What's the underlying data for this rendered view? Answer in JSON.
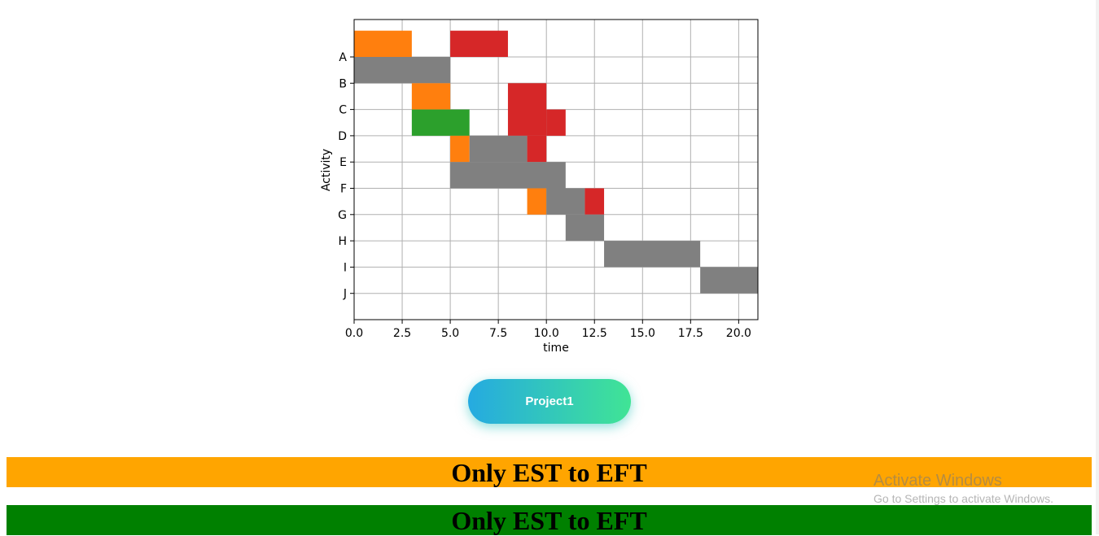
{
  "chart_data": {
    "type": "gantt",
    "xlabel": "time",
    "ylabel": "Activity",
    "xlim": [
      0,
      21
    ],
    "xticks": [
      "0.0",
      "2.5",
      "5.0",
      "7.5",
      "10.0",
      "12.5",
      "15.0",
      "17.5",
      "20.0"
    ],
    "xtick_values": [
      0,
      2.5,
      5,
      7.5,
      10,
      12.5,
      15,
      17.5,
      20
    ],
    "categories": [
      "A",
      "B",
      "C",
      "D",
      "E",
      "F",
      "G",
      "H",
      "I",
      "J"
    ],
    "grid": true,
    "colors": {
      "orange": "#ff7f0e",
      "grey": "#808080",
      "red": "#d62728",
      "green": "#2ca02c"
    },
    "bars": [
      {
        "row_from": "A",
        "row_to": "A",
        "top_half": true,
        "start": 0,
        "end": 3,
        "color": "orange"
      },
      {
        "row_from": "A",
        "row_to": "A",
        "top_half": true,
        "start": 5,
        "end": 8,
        "color": "red"
      },
      {
        "row_from": "A",
        "row_to": "B",
        "start": 0,
        "end": 5,
        "color": "grey"
      },
      {
        "row_from": "B",
        "row_to": "C",
        "start": 3,
        "end": 5,
        "color": "orange"
      },
      {
        "row_from": "B",
        "row_to": "D",
        "start": 8,
        "end": 10,
        "color": "red"
      },
      {
        "row_from": "C",
        "row_to": "D",
        "start": 3,
        "end": 6,
        "color": "green"
      },
      {
        "row_from": "C",
        "row_to": "D",
        "start": 10,
        "end": 11,
        "color": "red"
      },
      {
        "row_from": "D",
        "row_to": "E",
        "start": 5,
        "end": 6,
        "color": "orange"
      },
      {
        "row_from": "D",
        "row_to": "E",
        "start": 6,
        "end": 9,
        "color": "grey"
      },
      {
        "row_from": "D",
        "row_to": "E",
        "start": 9,
        "end": 10,
        "color": "red"
      },
      {
        "row_from": "E",
        "row_to": "F",
        "start": 5,
        "end": 11,
        "color": "grey"
      },
      {
        "row_from": "F",
        "row_to": "G",
        "start": 9,
        "end": 10,
        "color": "orange"
      },
      {
        "row_from": "F",
        "row_to": "G",
        "start": 10,
        "end": 12,
        "color": "grey"
      },
      {
        "row_from": "F",
        "row_to": "G",
        "start": 12,
        "end": 13,
        "color": "red"
      },
      {
        "row_from": "G",
        "row_to": "H",
        "start": 11,
        "end": 13,
        "color": "grey"
      },
      {
        "row_from": "H",
        "row_to": "I",
        "start": 13,
        "end": 18,
        "color": "grey"
      },
      {
        "row_from": "I",
        "row_to": "J",
        "start": 18,
        "end": 21,
        "color": "grey"
      }
    ]
  },
  "button": {
    "label": "Project1"
  },
  "banners": [
    {
      "text": "Only EST to EFT",
      "color": "#ffa500"
    },
    {
      "text": "Only EST to EFT",
      "color": "#008000"
    }
  ],
  "watermark": {
    "title": "Activate Windows",
    "subtitle": "Go to Settings to activate Windows."
  }
}
